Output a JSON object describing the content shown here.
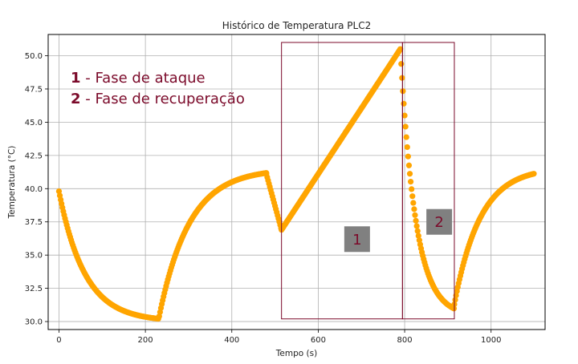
{
  "chart_data": {
    "type": "scatter",
    "title": "Histórico de Temperatura PLC2",
    "xlabel": "Tempo (s)",
    "ylabel": "Temperatura (°C)",
    "xlim": [
      -25,
      1125
    ],
    "ylim": [
      29.4,
      51.6
    ],
    "grid": true,
    "x_ticks": [
      0,
      200,
      400,
      600,
      800,
      1000
    ],
    "y_ticks": [
      30.0,
      32.5,
      35.0,
      37.5,
      40.0,
      42.5,
      45.0,
      47.5,
      50.0
    ],
    "x_tick_labels": [
      "0",
      "200",
      "400",
      "600",
      "800",
      "1000"
    ],
    "y_tick_labels": [
      "30.0",
      "32.5",
      "35.0",
      "37.5",
      "40.0",
      "42.5",
      "45.0",
      "47.5",
      "50.0"
    ],
    "series": [
      {
        "color": "#ffa500",
        "segments": [
          {
            "shape": "decay",
            "x0": 0,
            "x1": 230,
            "y_start": 39.8,
            "y_asymptote": 30.0,
            "tau": 60
          },
          {
            "shape": "rise",
            "x0": 232,
            "x1": 480,
            "y_start": 30.4,
            "y_asymptote": 41.5,
            "tau": 70
          },
          {
            "shape": "linear",
            "x0": 480,
            "x1": 515,
            "y_start": 41.1,
            "y_end": 36.9
          },
          {
            "shape": "linear",
            "x0": 515,
            "x1": 790,
            "y_start": 36.9,
            "y_end": 50.5
          },
          {
            "shape": "decay",
            "x0": 790,
            "x1": 915,
            "y_start": 50.5,
            "y_asymptote": 30.4,
            "tau": 35
          },
          {
            "shape": "rise",
            "x0": 915,
            "x1": 1100,
            "y_start": 31.3,
            "y_asymptote": 41.6,
            "tau": 60
          }
        ]
      }
    ],
    "annotations": {
      "legend_lines": [
        {
          "number": "1",
          "text": " - Fase de ataque"
        },
        {
          "number": "2",
          "text": " - Fase de recuperação"
        }
      ],
      "legend_color": "#7b0a2a",
      "phase_box_color": "#7b0a2a",
      "phase_boxes": [
        {
          "x0": 515,
          "x1": 795,
          "y0": 30.2,
          "y1": 51.0
        },
        {
          "x0": 795,
          "x1": 915,
          "y0": 30.2,
          "y1": 51.0
        }
      ],
      "box_labels": [
        {
          "text": "1",
          "x": 690,
          "y": 36.2
        },
        {
          "text": "2",
          "x": 880,
          "y": 37.5
        }
      ],
      "box_label_bg": "#808080"
    }
  }
}
